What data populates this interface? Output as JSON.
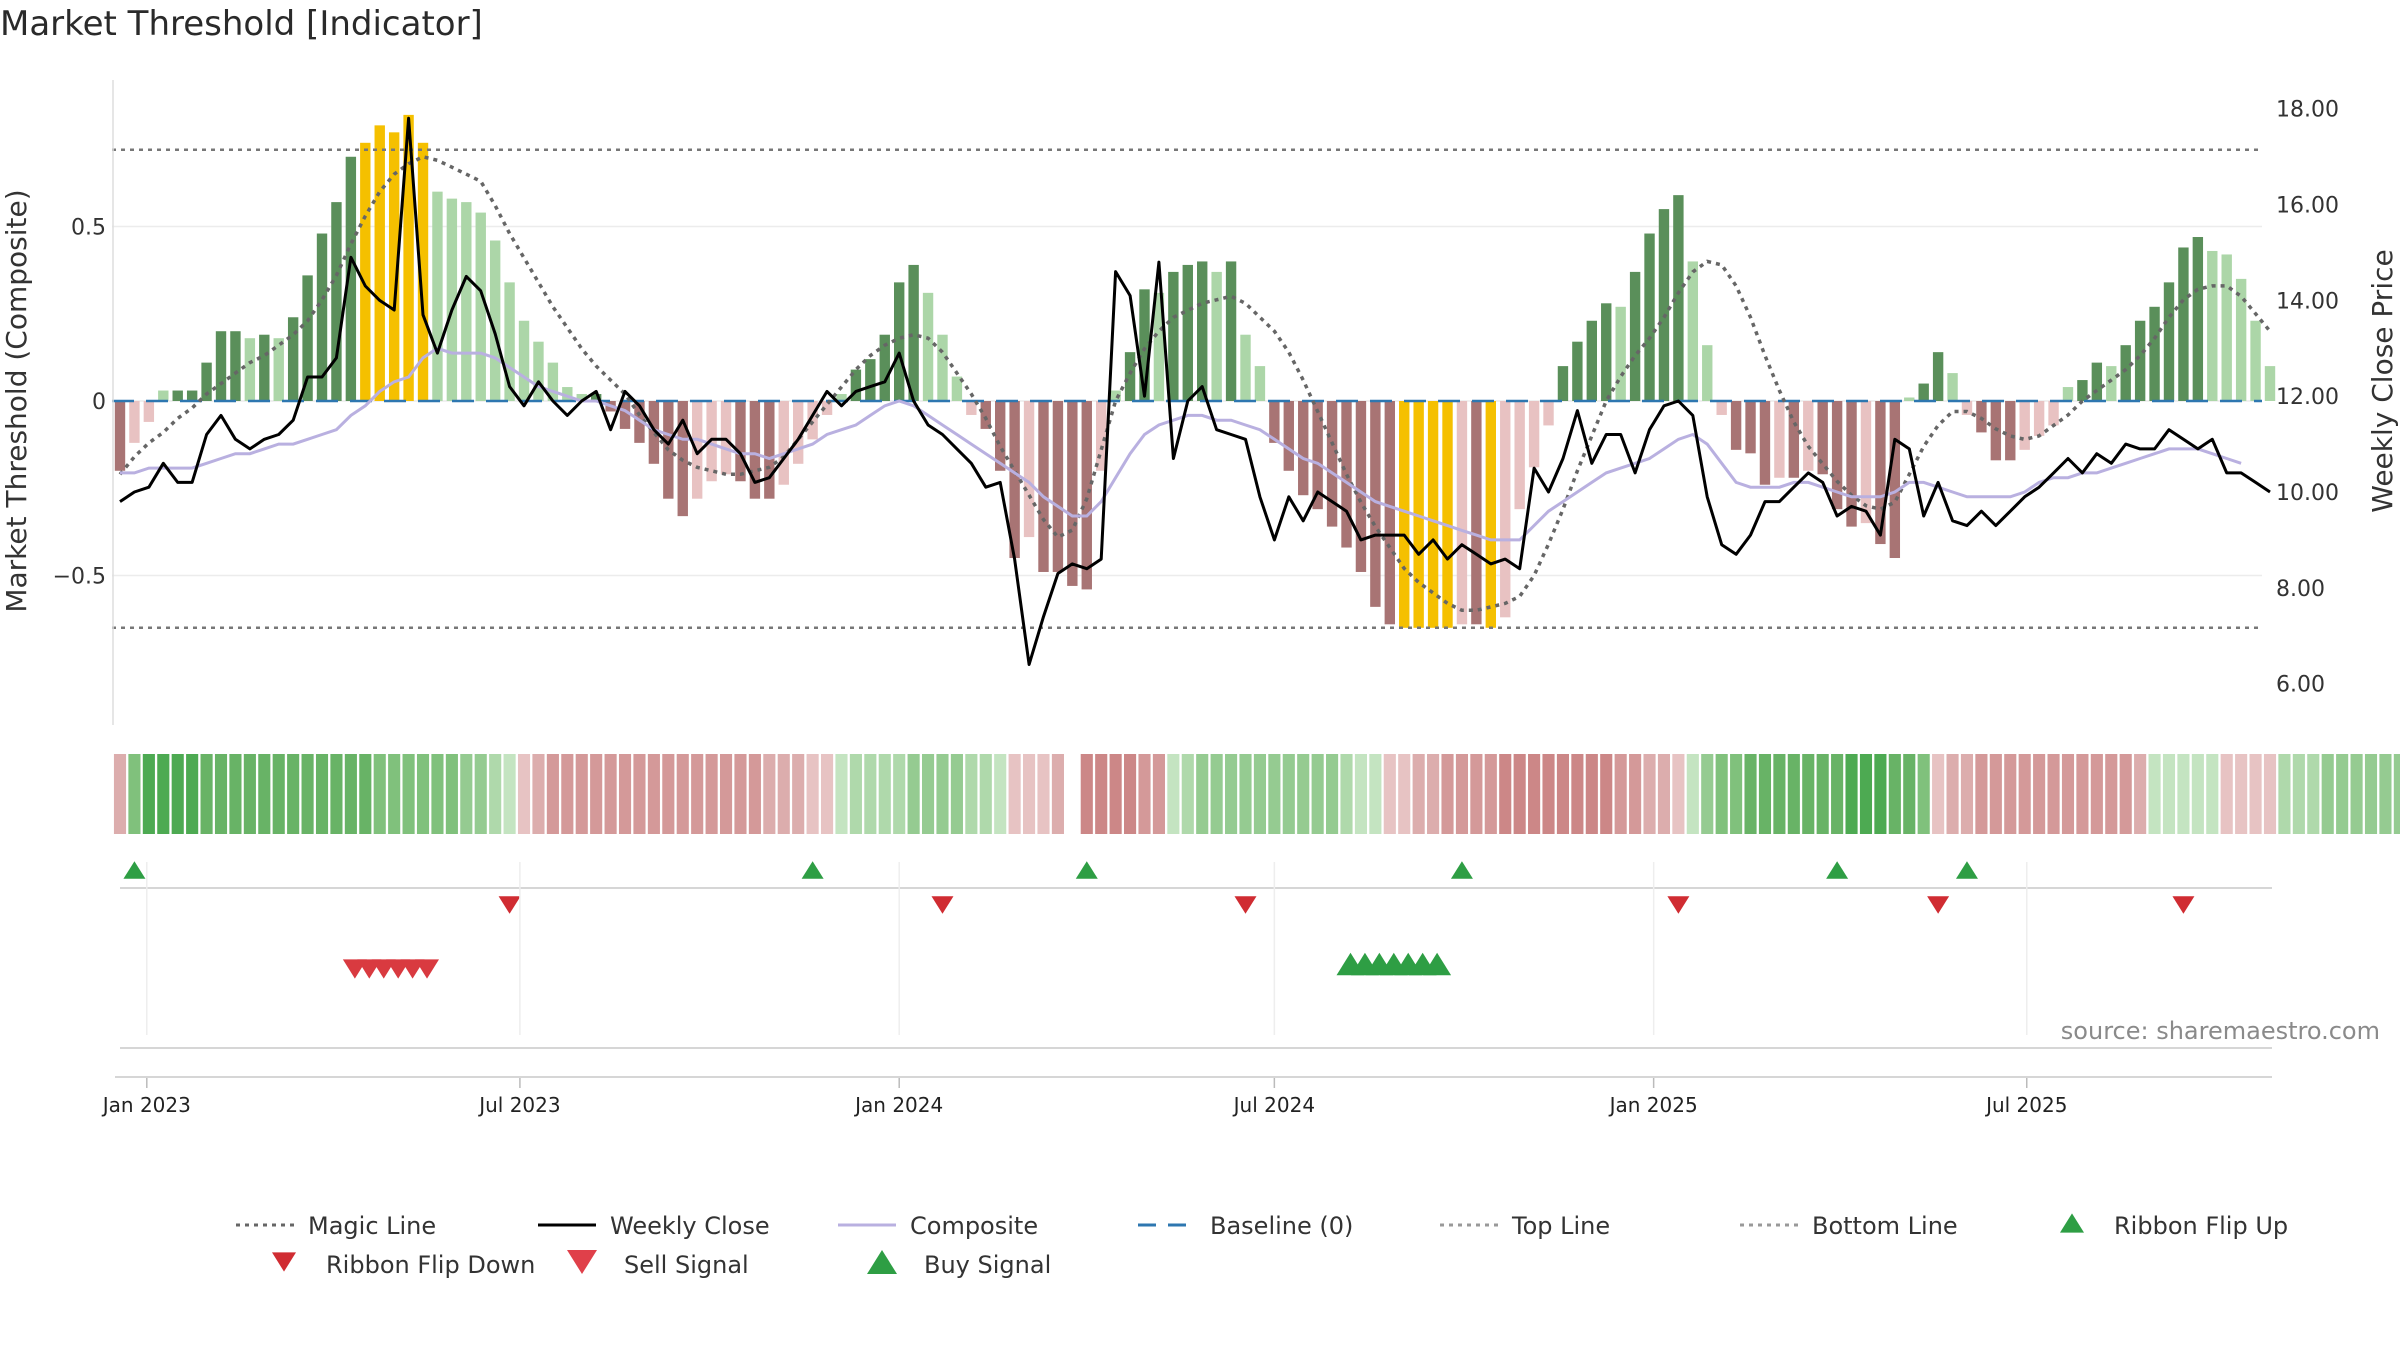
{
  "title": "Market Threshold [Indicator]",
  "source": "source: sharemaestro.com",
  "colors": {
    "strong_up": "#5a8f5a",
    "weak_up": "#acd6a8",
    "strong_down": "#a87474",
    "weak_down": "#e8c2c2",
    "extreme": "#f5c000",
    "close_line": "#000000",
    "composite_line": "#b9b0e0",
    "magic_line": "#666666",
    "baseline": "#2e77b0",
    "buy": "#2e9e44",
    "sell": "#d93a40"
  },
  "chart_data": {
    "type": "line",
    "x_start": "2022-12-19",
    "x_interval": "weekly",
    "x_ticks": [
      "Jan 2023",
      "Jul 2023",
      "Jan 2024",
      "Jul 2024",
      "Jan 2025",
      "Jul 2025"
    ],
    "left_axis": {
      "label": "Market Threshold (Composite)",
      "ticks": [
        "0.5",
        "0",
        "−0.5"
      ],
      "values": [
        0.5,
        0,
        -0.5
      ],
      "range": [
        -0.92,
        0.92
      ]
    },
    "right_axis": {
      "label": "Weekly Close Price",
      "ticks": [
        "18.00",
        "16.00",
        "14.00",
        "12.00",
        "10.00",
        "8.00",
        "6.00"
      ],
      "values": [
        18,
        16,
        14,
        12,
        10,
        8,
        6
      ],
      "range": [
        5.2,
        18.6
      ]
    },
    "top_line": 0.72,
    "bottom_line": -0.65,
    "baseline": 0,
    "composite_bars": [
      -0.2,
      -0.12,
      -0.06,
      0.03,
      0.03,
      0.03,
      0.11,
      0.2,
      0.2,
      0.18,
      0.19,
      0.18,
      0.24,
      0.36,
      0.48,
      0.57,
      0.7,
      0.74,
      0.79,
      0.77,
      0.82,
      0.74,
      0.6,
      0.58,
      0.57,
      0.54,
      0.46,
      0.34,
      0.23,
      0.17,
      0.11,
      0.04,
      0.02,
      0.02,
      -0.03,
      -0.08,
      -0.12,
      -0.18,
      -0.28,
      -0.33,
      -0.28,
      -0.23,
      -0.21,
      -0.23,
      -0.28,
      -0.28,
      -0.24,
      -0.18,
      -0.11,
      -0.04,
      0.02,
      0.09,
      0.12,
      0.19,
      0.34,
      0.39,
      0.31,
      0.19,
      0.07,
      -0.04,
      -0.08,
      -0.2,
      -0.45,
      -0.39,
      -0.49,
      -0.49,
      -0.53,
      -0.54,
      -0.2,
      0.03,
      0.14,
      0.32,
      0.31,
      0.37,
      0.39,
      0.4,
      0.37,
      0.4,
      0.19,
      0.1,
      -0.12,
      -0.2,
      -0.27,
      -0.31,
      -0.36,
      -0.42,
      -0.49,
      -0.59,
      -0.64,
      -0.65,
      -0.65,
      -0.65,
      -0.65,
      -0.64,
      -0.64,
      -0.65,
      -0.62,
      -0.31,
      -0.19,
      -0.07,
      0.1,
      0.17,
      0.23,
      0.28,
      0.27,
      0.37,
      0.48,
      0.55,
      0.59,
      0.4,
      0.16,
      -0.04,
      -0.14,
      -0.15,
      -0.24,
      -0.22,
      -0.22,
      -0.2,
      -0.21,
      -0.31,
      -0.36,
      -0.35,
      -0.41,
      -0.45,
      0.01,
      0.05,
      0.14,
      0.08,
      -0.04,
      -0.09,
      -0.17,
      -0.17,
      -0.14,
      -0.1,
      -0.07,
      0.04,
      0.06,
      0.11,
      0.1,
      0.16,
      0.23,
      0.27,
      0.34,
      0.44,
      0.47,
      0.43,
      0.42,
      0.35,
      0.23,
      0.1
    ],
    "weekly_close": [
      9.8,
      10.0,
      10.1,
      10.6,
      10.2,
      10.2,
      11.2,
      11.6,
      11.1,
      10.9,
      11.1,
      11.2,
      11.5,
      12.4,
      12.4,
      12.8,
      14.9,
      14.3,
      14.0,
      13.8,
      17.8,
      13.7,
      12.9,
      13.8,
      14.5,
      14.2,
      13.3,
      12.2,
      11.8,
      12.3,
      11.9,
      11.6,
      11.9,
      12.1,
      11.3,
      12.1,
      11.8,
      11.3,
      11.0,
      11.5,
      10.8,
      11.1,
      11.1,
      10.8,
      10.2,
      10.3,
      10.7,
      11.1,
      11.6,
      12.1,
      11.8,
      12.1,
      12.2,
      12.3,
      12.9,
      11.9,
      11.4,
      11.2,
      10.9,
      10.6,
      10.1,
      10.2,
      8.6,
      6.4,
      7.4,
      8.3,
      8.5,
      8.4,
      8.6,
      14.6,
      14.1,
      12.0,
      14.8,
      10.7,
      11.9,
      12.2,
      11.3,
      11.2,
      11.1,
      9.9,
      9.0,
      9.9,
      9.4,
      10.0,
      9.8,
      9.6,
      9.0,
      9.1,
      9.1,
      9.1,
      8.7,
      9.0,
      8.6,
      8.9,
      8.7,
      8.5,
      8.6,
      8.4,
      10.5,
      10.0,
      10.7,
      11.7,
      10.6,
      11.2,
      11.2,
      10.4,
      11.3,
      11.8,
      11.9,
      11.6,
      9.9,
      8.9,
      8.7,
      9.1,
      9.8,
      9.8,
      10.1,
      10.4,
      10.2,
      9.5,
      9.7,
      9.6,
      9.1,
      11.1,
      10.9,
      9.5,
      10.2,
      9.4,
      9.3,
      9.6,
      9.3,
      9.6,
      9.9,
      10.1,
      10.4,
      10.7,
      10.4,
      10.8,
      10.6,
      11.0,
      10.9,
      10.9,
      11.3,
      11.1,
      10.9,
      11.1,
      10.4,
      10.4,
      10.2,
      10.0
    ],
    "composite_line": [
      10.4,
      10.4,
      10.5,
      10.5,
      10.5,
      10.5,
      10.6,
      10.7,
      10.8,
      10.8,
      10.9,
      11.0,
      11.0,
      11.1,
      11.2,
      11.3,
      11.6,
      11.8,
      12.1,
      12.3,
      12.4,
      12.8,
      13.0,
      12.9,
      12.9,
      12.9,
      12.8,
      12.6,
      12.4,
      12.2,
      12.1,
      12.0,
      11.9,
      11.9,
      11.8,
      11.7,
      11.5,
      11.3,
      11.2,
      11.1,
      11.1,
      11.0,
      10.9,
      10.8,
      10.8,
      10.7,
      10.8,
      10.9,
      11.0,
      11.2,
      11.3,
      11.4,
      11.6,
      11.8,
      11.9,
      11.8,
      11.6,
      11.4,
      11.2,
      11.0,
      10.8,
      10.6,
      10.4,
      10.2,
      9.9,
      9.7,
      9.5,
      9.5,
      9.8,
      10.3,
      10.8,
      11.2,
      11.4,
      11.5,
      11.6,
      11.6,
      11.5,
      11.5,
      11.4,
      11.3,
      11.1,
      10.9,
      10.7,
      10.6,
      10.4,
      10.2,
      10.0,
      9.8,
      9.7,
      9.6,
      9.5,
      9.4,
      9.3,
      9.2,
      9.1,
      9.0,
      9.0,
      9.0,
      9.3,
      9.6,
      9.8,
      10.0,
      10.2,
      10.4,
      10.5,
      10.6,
      10.7,
      10.9,
      11.1,
      11.2,
      11.0,
      10.6,
      10.2,
      10.1,
      10.1,
      10.1,
      10.2,
      10.2,
      10.1,
      10.0,
      9.9,
      9.9,
      9.9,
      10.0,
      10.2,
      10.2,
      10.1,
      10.0,
      9.9,
      9.9,
      9.9,
      9.9,
      10.0,
      10.2,
      10.3,
      10.3,
      10.4,
      10.4,
      10.5,
      10.6,
      10.7,
      10.8,
      10.9,
      10.9,
      10.9,
      10.8,
      10.7,
      10.6
    ],
    "magic_line": [
      -0.21,
      -0.16,
      -0.12,
      -0.09,
      -0.05,
      -0.02,
      0.02,
      0.05,
      0.08,
      0.11,
      0.13,
      0.16,
      0.19,
      0.23,
      0.29,
      0.36,
      0.45,
      0.53,
      0.6,
      0.65,
      0.68,
      0.7,
      0.69,
      0.67,
      0.65,
      0.63,
      0.56,
      0.48,
      0.41,
      0.34,
      0.27,
      0.21,
      0.15,
      0.1,
      0.06,
      0.02,
      -0.04,
      -0.09,
      -0.14,
      -0.17,
      -0.19,
      -0.2,
      -0.21,
      -0.21,
      -0.2,
      -0.19,
      -0.16,
      -0.11,
      -0.06,
      -0.01,
      0.04,
      0.09,
      0.13,
      0.16,
      0.18,
      0.19,
      0.18,
      0.14,
      0.08,
      0.02,
      -0.05,
      -0.13,
      -0.2,
      -0.27,
      -0.34,
      -0.39,
      -0.37,
      -0.28,
      -0.14,
      0.0,
      0.08,
      0.15,
      0.2,
      0.24,
      0.26,
      0.28,
      0.29,
      0.3,
      0.28,
      0.24,
      0.2,
      0.14,
      0.06,
      -0.03,
      -0.12,
      -0.21,
      -0.29,
      -0.36,
      -0.42,
      -0.48,
      -0.52,
      -0.55,
      -0.58,
      -0.6,
      -0.6,
      -0.59,
      -0.58,
      -0.56,
      -0.5,
      -0.41,
      -0.31,
      -0.2,
      -0.1,
      0.0,
      0.07,
      0.13,
      0.18,
      0.24,
      0.31,
      0.37,
      0.4,
      0.39,
      0.33,
      0.24,
      0.13,
      0.03,
      -0.06,
      -0.13,
      -0.18,
      -0.23,
      -0.27,
      -0.3,
      -0.31,
      -0.29,
      -0.21,
      -0.13,
      -0.07,
      -0.03,
      -0.03,
      -0.05,
      -0.08,
      -0.1,
      -0.11,
      -0.1,
      -0.07,
      -0.04,
      0.0,
      0.03,
      0.06,
      0.09,
      0.13,
      0.18,
      0.24,
      0.29,
      0.32,
      0.33,
      0.33,
      0.3,
      0.25,
      0.2
    ],
    "ribbon": [
      -2,
      4,
      6,
      6,
      6,
      6,
      5,
      5,
      5,
      5,
      5,
      5,
      5,
      5,
      5,
      5,
      5,
      5,
      4,
      4,
      4,
      4,
      4,
      4,
      3,
      3,
      2,
      1,
      -1,
      -2,
      -3,
      -3,
      -3,
      -3,
      -3,
      -3,
      -3,
      -3,
      -3,
      -3,
      -3,
      -3,
      -3,
      -3,
      -3,
      -2,
      -2,
      -2,
      -1,
      -1,
      1,
      2,
      2,
      2,
      2,
      3,
      3,
      3,
      3,
      2,
      2,
      1,
      -1,
      -1,
      -1,
      -2,
      0,
      -4,
      -4,
      -4,
      -4,
      -3,
      -3,
      1,
      2,
      3,
      3,
      3,
      3,
      3,
      3,
      3,
      3,
      3,
      3,
      2,
      1,
      1,
      -1,
      -1,
      -2,
      -2,
      -3,
      -3,
      -3,
      -3,
      -4,
      -4,
      -4,
      -4,
      -4,
      -4,
      -4,
      -4,
      -3,
      -3,
      -2,
      -2,
      -1,
      1,
      3,
      4,
      4,
      5,
      5,
      5,
      5,
      5,
      5,
      5,
      6,
      6,
      6,
      5,
      5,
      4,
      -1,
      -2,
      -2,
      -3,
      -3,
      -3,
      -3,
      -3,
      -3,
      -3,
      -3,
      -3,
      -3,
      -3,
      -2,
      1,
      1,
      1,
      1,
      1,
      -1,
      -1,
      -1,
      -1,
      2,
      2,
      2,
      3,
      3,
      3,
      3,
      3,
      3,
      3,
      3,
      3,
      3,
      3,
      2,
      -1
    ],
    "ribbon_flip_up_weeks": [
      1,
      48,
      67,
      93,
      119,
      128
    ],
    "ribbon_flip_down_weeks": [
      27,
      57,
      78,
      108,
      126,
      143
    ],
    "sell_signal_weeks": [
      16,
      17,
      18,
      19,
      20,
      21
    ],
    "buy_signal_weeks": [
      85,
      86,
      87,
      88,
      89,
      90,
      91
    ],
    "legend": [
      {
        "label": "Magic Line",
        "kind": "dotted-line",
        "color": "#666666"
      },
      {
        "label": "Weekly Close",
        "kind": "solid-line",
        "color": "#000000"
      },
      {
        "label": "Composite",
        "kind": "solid-line",
        "color": "#b9b0e0"
      },
      {
        "label": "Baseline (0)",
        "kind": "dashed-line",
        "color": "#2e77b0"
      },
      {
        "label": "Top Line",
        "kind": "dotted-line",
        "color": "#999999"
      },
      {
        "label": "Bottom Line",
        "kind": "dotted-line",
        "color": "#999999"
      },
      {
        "label": "Ribbon Flip Up",
        "kind": "triangle-up",
        "color": "#2e9e44"
      },
      {
        "label": "Ribbon Flip Down",
        "kind": "triangle-down",
        "color": "#d02c32"
      },
      {
        "label": "Sell Signal",
        "kind": "triangle-down",
        "color": "#e0404a"
      },
      {
        "label": "Buy Signal",
        "kind": "triangle-up",
        "color": "#2e9e44"
      }
    ]
  }
}
